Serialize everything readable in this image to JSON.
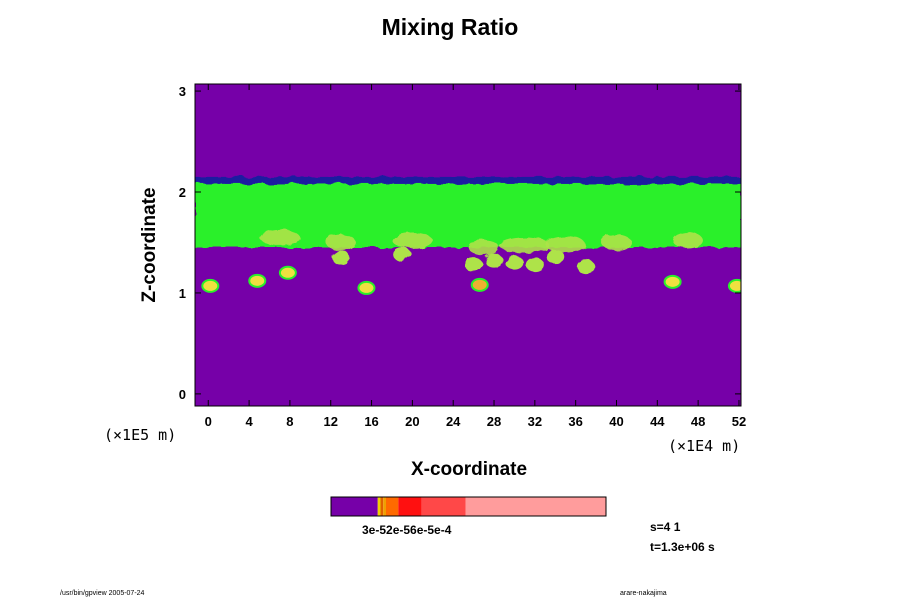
{
  "chart_data": {
    "type": "heatmap",
    "title": "Mixing Ratio",
    "xlabel": "X-coordinate",
    "ylabel": "Z-coordinate",
    "x_unit": "(×1E4 m)",
    "y_unit": "(×1E5 m)",
    "xlim": [
      -1.3,
      52.2
    ],
    "ylim": [
      -0.12,
      3.07
    ],
    "x_ticks": [
      0,
      4,
      8,
      12,
      16,
      20,
      24,
      28,
      32,
      36,
      40,
      44,
      48,
      52
    ],
    "y_ticks": [
      0,
      1,
      2,
      3
    ],
    "background_color": "#7600a8",
    "fields": [
      {
        "name": "dark band",
        "color": "#1e1ea0",
        "x": [
          -1.3,
          52.2
        ],
        "z": [
          2.08,
          2.15
        ]
      },
      {
        "name": "main layer",
        "color": "#2af02a",
        "x": [
          -1.3,
          52.2
        ],
        "z": [
          1.45,
          2.08
        ]
      },
      {
        "name": "cloud base variations",
        "color": "#aee34a"
      }
    ],
    "blobs": [
      {
        "x": 0.2,
        "z": 1.07,
        "color": "#f0e040"
      },
      {
        "x": 4.8,
        "z": 1.12,
        "color": "#f0e040"
      },
      {
        "x": 7.8,
        "z": 1.2,
        "color": "#f0e040"
      },
      {
        "x": 15.5,
        "z": 1.05,
        "color": "#f0e040"
      },
      {
        "x": 26.6,
        "z": 1.08,
        "color": "#f0b030"
      },
      {
        "x": 45.5,
        "z": 1.11,
        "color": "#f0e040"
      },
      {
        "x": 51.8,
        "z": 1.07,
        "color": "#f0e040"
      }
    ],
    "colorbar": {
      "segments": [
        {
          "color": "#7600a8",
          "from": 0.0,
          "to": 0.17
        },
        {
          "color": "#f0d000",
          "from": 0.17,
          "to": 0.18
        },
        {
          "color": "#e06000",
          "from": 0.18,
          "to": 0.19
        },
        {
          "color": "#f0a000",
          "from": 0.19,
          "to": 0.2
        },
        {
          "color": "#ff6a00",
          "from": 0.2,
          "to": 0.245
        },
        {
          "color": "#ff1010",
          "from": 0.245,
          "to": 0.33
        },
        {
          "color": "#ff4848",
          "from": 0.33,
          "to": 0.49
        },
        {
          "color": "#ff9c9c",
          "from": 0.49,
          "to": 1.0
        }
      ],
      "labels_text": "3e-52e-56e-5e-4"
    }
  },
  "info": {
    "s_line": "s=4 1",
    "t_line": "t=1.3e+06 s"
  },
  "footer": {
    "left": "/usr/bin/gpview 2005-07-24",
    "right": "arare-nakajima"
  }
}
